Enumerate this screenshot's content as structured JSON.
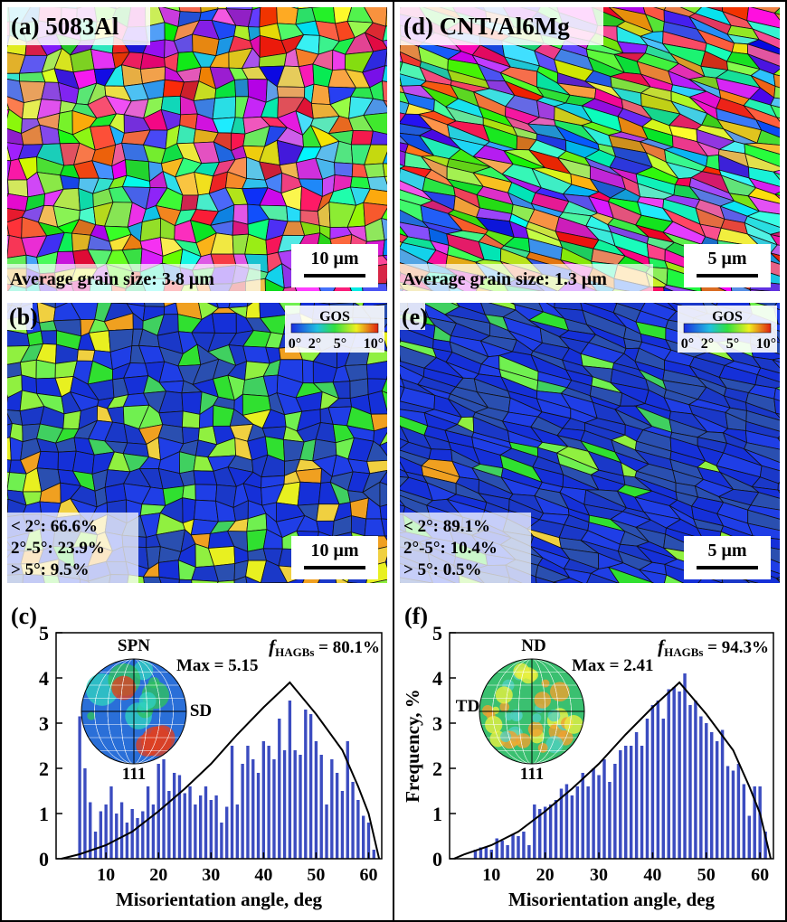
{
  "maps": [
    {
      "label": "(a) 5083Al",
      "caption": "Average grain size: 3.8 μm",
      "scale_bar": "10 μm"
    },
    {
      "label": "(d) CNT/Al6Mg",
      "caption": "Average grain size: 1.3 μm",
      "scale_bar": "5 μm"
    }
  ],
  "gos_maps": [
    {
      "label": "(b)",
      "colorbar_title": "GOS",
      "colorbar_ticks": [
        "0°",
        "2°",
        "5°",
        "10°"
      ],
      "fractions": [
        "< 2°: 66.6%",
        "2°-5°: 23.9%",
        "> 5°: 9.5%"
      ],
      "scale_bar": "10 μm"
    },
    {
      "label": "(e)",
      "colorbar_title": "GOS",
      "colorbar_ticks": [
        "0°",
        "2°",
        "5°",
        "10°"
      ],
      "fractions": [
        "< 2°: 89.1%",
        "2°-5°: 10.4%",
        "> 5°: 0.5%"
      ],
      "scale_bar": "5 μm"
    }
  ],
  "chart_data": [
    {
      "type": "bar",
      "panel_label": "(c)",
      "xlabel": "Misorientation angle, deg",
      "color": "#3b4cc0",
      "x": [
        5,
        6,
        7,
        8,
        9,
        10,
        11,
        12,
        13,
        14,
        15,
        16,
        17,
        18,
        19,
        20,
        21,
        22,
        23,
        24,
        25,
        26,
        27,
        28,
        29,
        30,
        31,
        32,
        33,
        34,
        35,
        36,
        37,
        38,
        39,
        40,
        41,
        42,
        43,
        44,
        45,
        46,
        47,
        48,
        49,
        50,
        51,
        52,
        53,
        54,
        55,
        56,
        57,
        58,
        59,
        60,
        61
      ],
      "values": [
        3.15,
        2.0,
        1.25,
        0.6,
        1.05,
        1.2,
        1.6,
        1.0,
        1.25,
        0.8,
        1.1,
        0.9,
        1.05,
        1.6,
        1.2,
        2.1,
        2.2,
        1.5,
        1.9,
        1.85,
        1.45,
        1.6,
        1.2,
        1.4,
        1.6,
        1.3,
        1.4,
        0.8,
        1.15,
        2.5,
        1.2,
        2.1,
        2.5,
        2.2,
        1.9,
        2.6,
        2.5,
        2.2,
        3.1,
        2.4,
        3.5,
        2.4,
        2.3,
        3.3,
        3.2,
        2.6,
        2.3,
        1.2,
        2.2,
        1.9,
        1.5,
        2.6,
        1.7,
        1.3,
        0.95,
        0.8,
        0.2
      ],
      "curve": {
        "x": [
          1.5,
          5,
          10,
          15,
          20,
          25,
          30,
          35,
          40,
          45,
          50,
          55,
          58,
          60,
          61,
          62
        ],
        "y": [
          0,
          0.1,
          0.3,
          0.6,
          1.05,
          1.55,
          2.1,
          2.75,
          3.35,
          3.9,
          3.2,
          2.4,
          1.6,
          1.0,
          0.5,
          0
        ]
      },
      "xlim": [
        0.5,
        62.5
      ],
      "ylim": [
        0,
        5
      ],
      "xticks": [
        10,
        20,
        30,
        40,
        50,
        60
      ],
      "yticks": [
        0,
        1,
        2,
        3,
        4,
        5
      ],
      "annotation": {
        "symbol": "f",
        "subscript": "HAGBs",
        "text": " = 80.1%"
      },
      "inset": {
        "max": "Max = 5.15",
        "top": "SPN",
        "side": "SD",
        "bottom": "111"
      }
    },
    {
      "type": "bar",
      "panel_label": "(f)",
      "xlabel": "Misorientation angle, deg",
      "ylabel": "Frequency, %",
      "color": "#3b4cc0",
      "x": [
        7,
        8,
        9,
        10,
        11,
        12,
        13,
        14,
        15,
        16,
        17,
        18,
        19,
        20,
        21,
        22,
        23,
        24,
        25,
        26,
        27,
        28,
        29,
        30,
        31,
        32,
        33,
        34,
        35,
        36,
        37,
        38,
        39,
        40,
        41,
        42,
        43,
        44,
        45,
        46,
        47,
        48,
        49,
        50,
        51,
        52,
        53,
        54,
        55,
        56,
        57,
        58,
        59,
        60,
        61
      ],
      "values": [
        0.2,
        0.25,
        0.25,
        0.2,
        0.45,
        0.4,
        0.3,
        0.55,
        0.5,
        0.6,
        0.3,
        1.2,
        1.1,
        1.15,
        1.2,
        1.3,
        1.55,
        1.65,
        1.4,
        1.6,
        1.9,
        1.6,
        2.0,
        1.85,
        2.2,
        1.7,
        2.1,
        2.4,
        2.5,
        2.5,
        2.8,
        2.5,
        3.1,
        3.4,
        3.5,
        3.1,
        3.75,
        3.8,
        3.7,
        4.1,
        3.4,
        3.5,
        3.15,
        3.0,
        2.8,
        2.6,
        2.85,
        2.05,
        1.95,
        2.1,
        1.65,
        0.95,
        1.6,
        1.6,
        0.6
      ],
      "curve": {
        "x": [
          3,
          5,
          10,
          15,
          20,
          25,
          30,
          35,
          40,
          45,
          50,
          55,
          58,
          60,
          61,
          62
        ],
        "y": [
          0,
          0.1,
          0.3,
          0.6,
          1.05,
          1.55,
          2.1,
          2.75,
          3.35,
          3.9,
          3.2,
          2.4,
          1.6,
          1.0,
          0.5,
          0
        ]
      },
      "xlim": [
        2.2,
        62.5
      ],
      "ylim": [
        0,
        5
      ],
      "xticks": [
        10,
        20,
        30,
        40,
        50,
        60
      ],
      "yticks": [
        0,
        1,
        2,
        3,
        4,
        5
      ],
      "annotation": {
        "symbol": "f",
        "subscript": "HAGBs",
        "text": " = 94.3%"
      },
      "inset": {
        "max": "Max = 2.41",
        "top": "ND",
        "side": "TD",
        "bottom": "111"
      }
    }
  ]
}
